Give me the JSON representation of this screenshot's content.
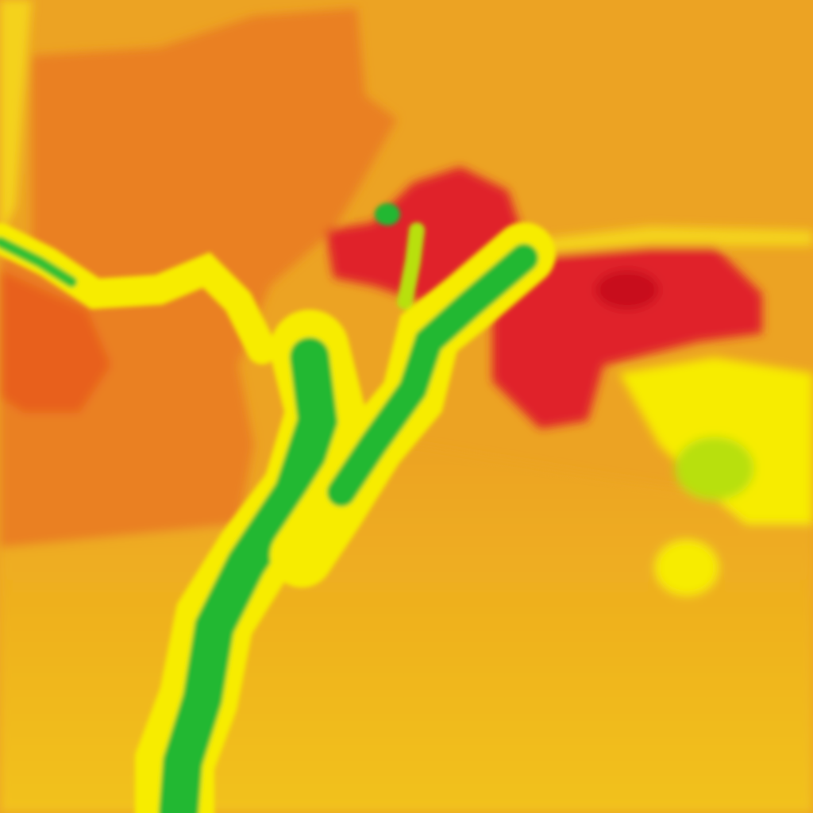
{
  "map": {
    "type": "heatmap-raster",
    "colors": {
      "base": "#eca323",
      "lowland": "#f2c21a",
      "orange": "#ea8020",
      "deep_orange": "#e8601f",
      "red": "#e0202a",
      "dark_red": "#c8101a",
      "yellow": "#f7ec00",
      "lime": "#b8e010",
      "green": "#20b830"
    }
  }
}
